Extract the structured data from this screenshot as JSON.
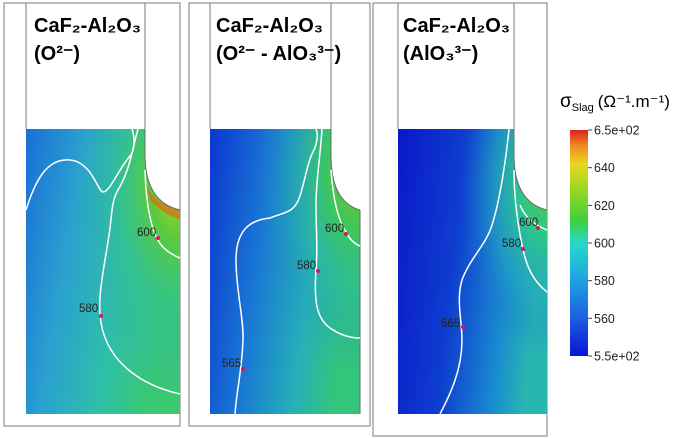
{
  "panels": [
    {
      "title": "CaF₂-Al₂O₃",
      "subtitle": "(O²⁻)",
      "contour_labels": [
        "600",
        "580"
      ]
    },
    {
      "title": "CaF₂-Al₂O₃",
      "subtitle": "(O²⁻ - AlO₃³⁻)",
      "contour_labels": [
        "600",
        "580",
        "565"
      ]
    },
    {
      "title": "CaF₂-Al₂O₃",
      "subtitle": "(AlO₃³⁻)",
      "contour_labels": [
        "600",
        "580",
        "565"
      ]
    }
  ],
  "colorbar": {
    "symbol": "σ",
    "subscript": "Slag",
    "unit": "(Ω⁻¹.m⁻¹)",
    "ticks": [
      "6.5e+02",
      "640",
      "620",
      "600",
      "580",
      "560",
      "5.5e+02"
    ],
    "colors": [
      "#e02020",
      "#f08a1e",
      "#e8d81e",
      "#3ecf3e",
      "#27d9c8",
      "#1e8be0",
      "#0a14d8"
    ]
  }
}
